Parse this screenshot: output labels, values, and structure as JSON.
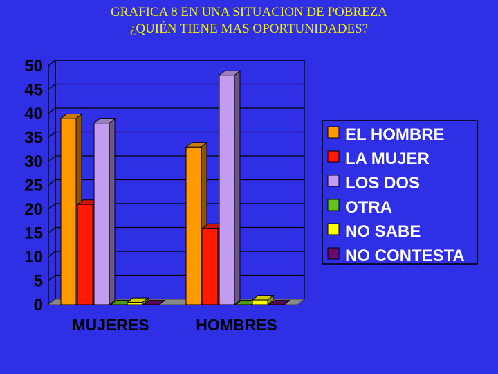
{
  "title_lines": [
    "GRAFICA 8  EN UNA SITUACION DE POBREZA",
    "¿QUIÉN TIENE MAS OPORTUNIDADES?"
  ],
  "colors": {
    "background": "#2f2fe6",
    "title": "#f2f200",
    "plot_face": "#2f2fe6",
    "axis_text": "#000000",
    "legend_text": "#ffffff"
  },
  "chart_data": {
    "type": "bar",
    "style": "3d-clustered",
    "categories": [
      "MUJERES",
      "HOMBRES"
    ],
    "series": [
      {
        "name": "EL HOMBRE",
        "color": "#ff9900",
        "values": [
          39,
          33
        ]
      },
      {
        "name": "LA MUJER",
        "color": "#ff1a00",
        "values": [
          21,
          16
        ]
      },
      {
        "name": "LOS DOS",
        "color": "#c29cf0",
        "values": [
          38,
          48
        ]
      },
      {
        "name": "OTRA",
        "color": "#66c21e",
        "values": [
          0,
          0
        ]
      },
      {
        "name": "NO SABE",
        "color": "#ffff00",
        "values": [
          0.5,
          1
        ]
      },
      {
        "name": "NO CONTESTA",
        "color": "#6a0a6a",
        "values": [
          0,
          0
        ]
      }
    ],
    "y_ticks": [
      "0",
      "5",
      "10",
      "15",
      "20",
      "25",
      "30",
      "35",
      "40",
      "45",
      "50"
    ],
    "ylim": [
      0,
      50
    ],
    "gridlines": true,
    "legend_position": "right"
  }
}
